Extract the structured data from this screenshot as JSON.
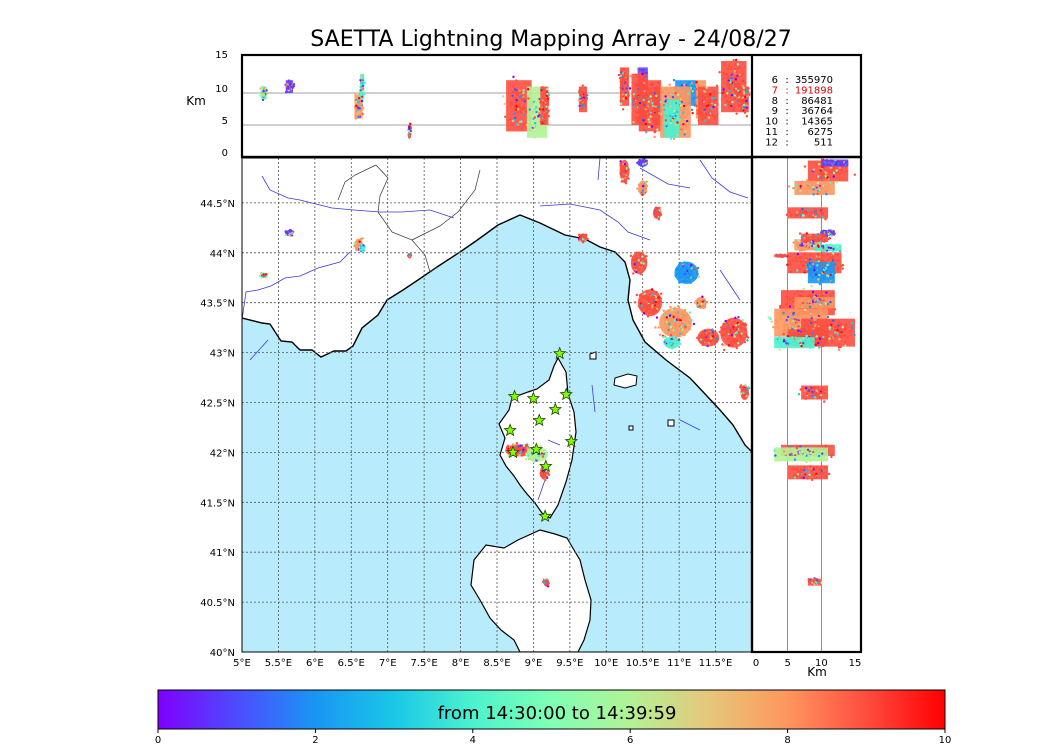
{
  "chart_data": {
    "type": "scatter",
    "title": "SAETTA Lightning Mapping Array - 24/08/27",
    "lon_ticks": [
      "5°E",
      "5.5°E",
      "6°E",
      "6.5°E",
      "7°E",
      "7.5°E",
      "8°E",
      "8.5°E",
      "9°E",
      "9.5°E",
      "10°E",
      "10.5°E",
      "11°E",
      "11.5°E"
    ],
    "lat_ticks": [
      "40°N",
      "40.5°N",
      "41°N",
      "41.5°N",
      "42°N",
      "42.5°N",
      "43°N",
      "43.5°N",
      "44°N",
      "44.5°N"
    ],
    "lon_range": [
      5,
      12
    ],
    "lat_range": [
      40,
      44.95
    ],
    "alt_ticks": [
      "0",
      "5",
      "10",
      "15"
    ],
    "alt_unit": "Km",
    "alt_range": [
      0,
      15
    ],
    "grid": true,
    "counts_legend": [
      {
        "label": "6",
        "value": "355970",
        "color": "#000000"
      },
      {
        "label": "7",
        "value": "191898",
        "color": "#e00000"
      },
      {
        "label": "8",
        "value": "86481",
        "color": "#000000"
      },
      {
        "label": "9",
        "value": "36764",
        "color": "#000000"
      },
      {
        "label": "10",
        "value": "14365",
        "color": "#000000"
      },
      {
        "label": "11",
        "value": "6275",
        "color": "#000000"
      },
      {
        "label": "12",
        "value": "511",
        "color": "#000000"
      }
    ],
    "colorbar": {
      "text": "from 14:30:00 to 14:39:59",
      "ticks": [
        "0",
        "2",
        "4",
        "6",
        "8",
        "10"
      ],
      "range": [
        0,
        10
      ],
      "colors": [
        "#7f00ff",
        "#4c4cff",
        "#1996f3",
        "#1ac7e7",
        "#4cf2ce",
        "#80ffb4",
        "#b2f296",
        "#e6c77a",
        "#ff965f",
        "#ff4c3f",
        "#ff0000"
      ]
    },
    "stations": [
      {
        "lon": 9.36,
        "lat": 42.99
      },
      {
        "lon": 8.74,
        "lat": 42.56
      },
      {
        "lon": 9.0,
        "lat": 42.54
      },
      {
        "lon": 9.45,
        "lat": 42.58
      },
      {
        "lon": 9.3,
        "lat": 42.43
      },
      {
        "lon": 9.08,
        "lat": 42.32
      },
      {
        "lon": 8.68,
        "lat": 42.22
      },
      {
        "lon": 9.52,
        "lat": 42.11
      },
      {
        "lon": 8.72,
        "lat": 42.0
      },
      {
        "lon": 9.04,
        "lat": 42.03
      },
      {
        "lon": 9.17,
        "lat": 41.86
      },
      {
        "lon": 9.16,
        "lat": 41.36
      }
    ],
    "lightning_clusters": [
      {
        "lon": 5.65,
        "lat": 44.2,
        "alt": 11,
        "rx": 0.07,
        "ry": 0.04,
        "rz": 1,
        "color": "#6a3cff"
      },
      {
        "lon": 5.3,
        "lat": 43.77,
        "alt": 10,
        "rx": 0.06,
        "ry": 0.03,
        "rz": 1,
        "color": "#80ffb4"
      },
      {
        "lon": 6.6,
        "lat": 44.08,
        "alt": 8,
        "rx": 0.08,
        "ry": 0.08,
        "rz": 2,
        "color": "#ff965f"
      },
      {
        "lon": 6.65,
        "lat": 44.05,
        "alt": 11,
        "rx": 0.04,
        "ry": 0.05,
        "rz": 2,
        "color": "#4cf2ce"
      },
      {
        "lon": 7.3,
        "lat": 43.97,
        "alt": 4,
        "rx": 0.03,
        "ry": 0.02,
        "rz": 1,
        "color": "#ff4c3f"
      },
      {
        "lon": 9.68,
        "lat": 44.15,
        "alt": 9,
        "rx": 0.08,
        "ry": 0.06,
        "rz": 2,
        "color": "#ff4c3f"
      },
      {
        "lon": 10.25,
        "lat": 44.82,
        "alt": 11,
        "rx": 0.09,
        "ry": 0.15,
        "rz": 3,
        "color": "#ff4c3f"
      },
      {
        "lon": 10.5,
        "lat": 44.65,
        "alt": 9,
        "rx": 0.08,
        "ry": 0.1,
        "rz": 3,
        "color": "#ff965f"
      },
      {
        "lon": 10.7,
        "lat": 44.4,
        "alt": 8,
        "rx": 0.08,
        "ry": 0.08,
        "rz": 3,
        "color": "#ff4c3f"
      },
      {
        "lon": 10.5,
        "lat": 44.9,
        "alt": 12,
        "rx": 0.1,
        "ry": 0.05,
        "rz": 2,
        "color": "#6a3cff"
      },
      {
        "lon": 10.45,
        "lat": 43.9,
        "alt": 9,
        "rx": 0.15,
        "ry": 0.15,
        "rz": 4,
        "color": "#ff4c3f"
      },
      {
        "lon": 10.6,
        "lat": 43.5,
        "alt": 8,
        "rx": 0.22,
        "ry": 0.18,
        "rz": 4,
        "color": "#ff4c3f"
      },
      {
        "lon": 11.1,
        "lat": 43.8,
        "alt": 10,
        "rx": 0.22,
        "ry": 0.15,
        "rz": 2,
        "color": "#1996f3"
      },
      {
        "lon": 10.95,
        "lat": 43.3,
        "alt": 7,
        "rx": 0.3,
        "ry": 0.2,
        "rz": 4,
        "color": "#ff965f"
      },
      {
        "lon": 11.3,
        "lat": 43.5,
        "alt": 9,
        "rx": 0.1,
        "ry": 0.08,
        "rz": 3,
        "color": "#ff965f"
      },
      {
        "lon": 11.75,
        "lat": 43.2,
        "alt": 11,
        "rx": 0.25,
        "ry": 0.2,
        "rz": 4,
        "color": "#ff4c3f"
      },
      {
        "lon": 11.4,
        "lat": 43.15,
        "alt": 8,
        "rx": 0.2,
        "ry": 0.12,
        "rz": 3,
        "color": "#ff4c3f"
      },
      {
        "lon": 10.9,
        "lat": 43.1,
        "alt": 6,
        "rx": 0.15,
        "ry": 0.08,
        "rz": 3,
        "color": "#4cf2ce"
      },
      {
        "lon": 11.9,
        "lat": 42.6,
        "alt": 9,
        "rx": 0.08,
        "ry": 0.1,
        "rz": 2,
        "color": "#ff4c3f"
      },
      {
        "lon": 8.8,
        "lat": 42.02,
        "alt": 8,
        "rx": 0.25,
        "ry": 0.08,
        "rz": 4,
        "color": "#ff4c3f"
      },
      {
        "lon": 9.05,
        "lat": 41.98,
        "alt": 7,
        "rx": 0.2,
        "ry": 0.1,
        "rz": 4,
        "color": "#b2f296"
      },
      {
        "lon": 9.15,
        "lat": 41.8,
        "alt": 8,
        "rx": 0.08,
        "ry": 0.1,
        "rz": 3,
        "color": "#ff4c3f"
      },
      {
        "lon": 9.18,
        "lat": 40.7,
        "alt": 9,
        "rx": 0.05,
        "ry": 0.05,
        "rz": 1,
        "color": "#ff4c3f"
      }
    ]
  }
}
